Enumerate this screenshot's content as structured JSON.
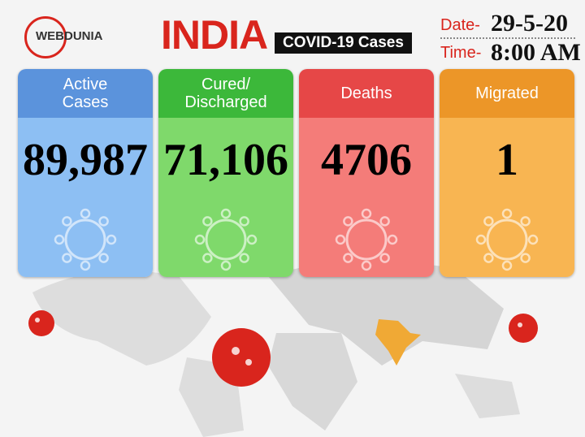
{
  "header": {
    "brand": "WEBDUNIA",
    "title": "INDIA",
    "subtitle": "COVID-19 Cases",
    "date_label": "Date-",
    "date": "29-5-20",
    "time_label": "Time-",
    "time": "8:00 AM"
  },
  "cards": [
    {
      "label_lines": [
        "Active",
        "Cases"
      ],
      "value": "89,987"
    },
    {
      "label_lines": [
        "Cured/",
        "Discharged"
      ],
      "value": "71,106"
    },
    {
      "label_lines": [
        "Deaths"
      ],
      "value": "4706"
    },
    {
      "label_lines": [
        "Migrated"
      ],
      "value": "1"
    }
  ]
}
